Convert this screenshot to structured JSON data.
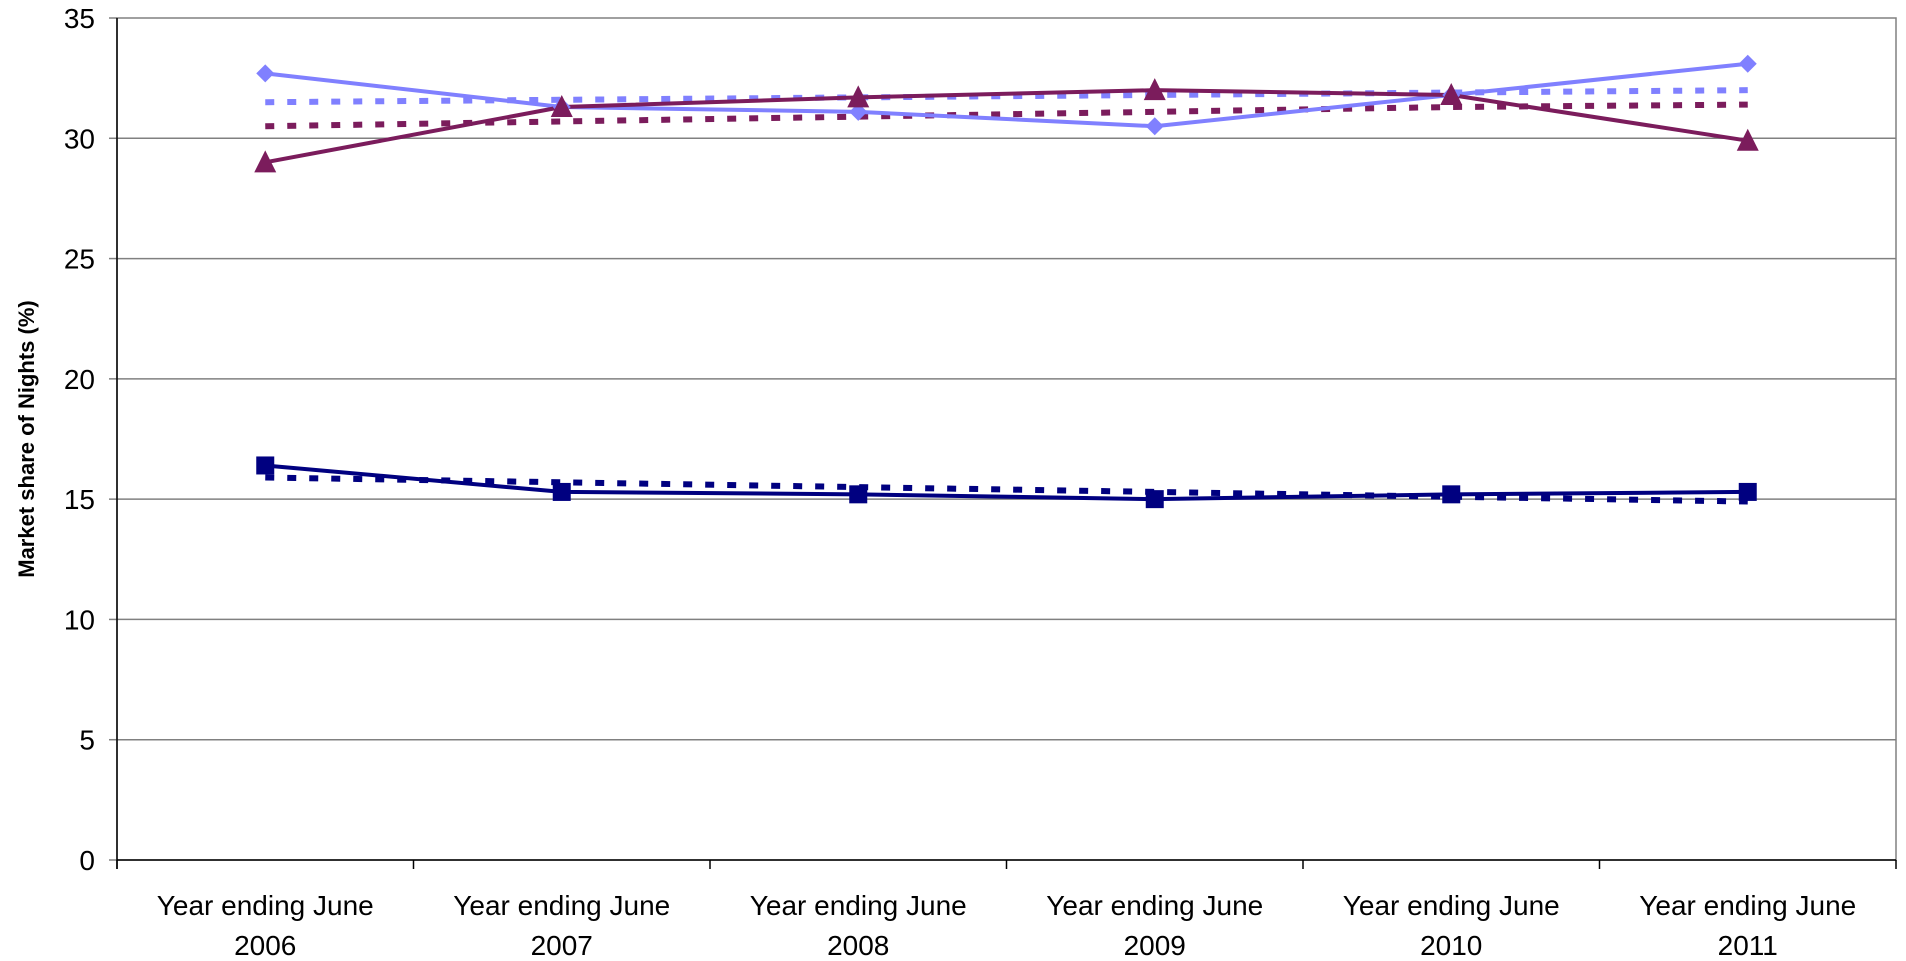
{
  "chart_data": {
    "type": "line",
    "ylabel": "Market share of Nights (%)",
    "xlabel": "",
    "ylim": [
      0,
      35
    ],
    "yticks": [
      0,
      5,
      10,
      15,
      20,
      25,
      30,
      35
    ],
    "categories": [
      [
        "Year ending June",
        "2006"
      ],
      [
        "Year ending June",
        "2007"
      ],
      [
        "Year ending June",
        "2008"
      ],
      [
        "Year ending June",
        "2009"
      ],
      [
        "Year ending June",
        "2010"
      ],
      [
        "Year ending June",
        "2011"
      ]
    ],
    "grid": true,
    "series": [
      {
        "color": "#8080ff",
        "marker": "diamond",
        "values": [
          32.7,
          31.3,
          31.1,
          30.5,
          31.8,
          33.1
        ]
      },
      {
        "color": "#7b1c5c",
        "marker": "triangle",
        "values": [
          29.0,
          31.3,
          31.7,
          32.0,
          31.8,
          29.9
        ]
      },
      {
        "color": "#000080",
        "marker": "square",
        "values": [
          16.4,
          15.3,
          15.2,
          15.0,
          15.2,
          15.3
        ]
      }
    ],
    "trendlines": [
      {
        "color": "#8080ff",
        "style": "dotted",
        "values": [
          31.5,
          31.6,
          31.7,
          31.8,
          31.9,
          32.0
        ]
      },
      {
        "color": "#7b1c5c",
        "style": "dotted",
        "values": [
          30.5,
          30.7,
          30.9,
          31.1,
          31.3,
          31.4
        ]
      },
      {
        "color": "#000080",
        "style": "dotted",
        "values": [
          15.9,
          15.7,
          15.5,
          15.3,
          15.1,
          14.9
        ]
      }
    ]
  }
}
